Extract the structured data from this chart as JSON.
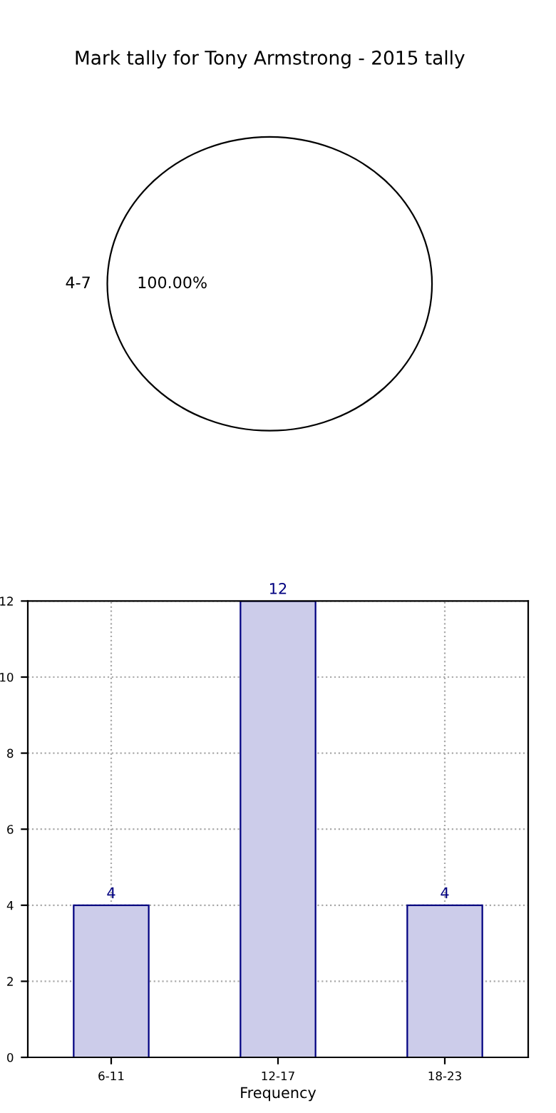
{
  "chart_data": [
    {
      "type": "pie",
      "title": "Mark tally for Tony Armstrong - 2015 tally",
      "categories": [
        "4-7"
      ],
      "values": [
        100
      ],
      "colors": [
        "#ffffff"
      ],
      "value_labels": [
        "100.00%"
      ]
    },
    {
      "type": "bar",
      "xlabel": "Frequency",
      "categories": [
        "6-11",
        "12-17",
        "18-23"
      ],
      "values": [
        4,
        12,
        4
      ],
      "color": "#ccccea",
      "ylim": [
        0,
        12
      ],
      "yticks": [
        0,
        2,
        4,
        6,
        8,
        10,
        12
      ],
      "grid": true,
      "data_labels": true
    }
  ]
}
